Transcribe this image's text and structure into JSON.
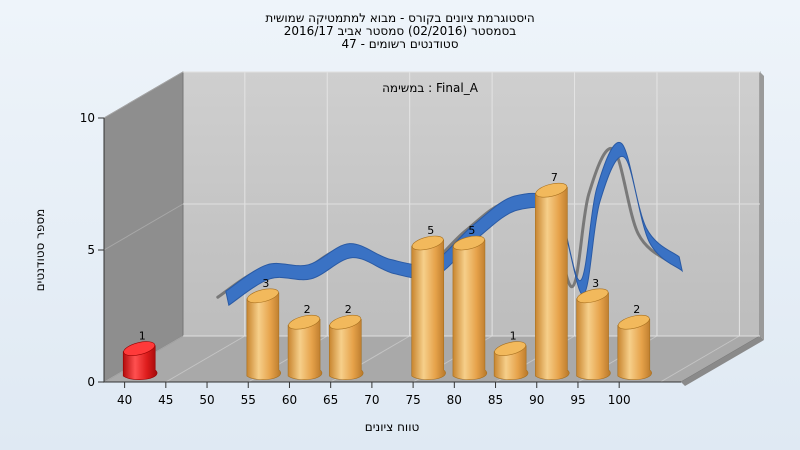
{
  "chart_data": {
    "type": "bar",
    "title_lines": [
      "היסטוגרמת ציונים בקורס - מבוא למתמטיקה שמושית",
      "בסמסטר  (02/2016)  סמסטר אביב 2016/17",
      "סטודנטים רשומים - 47"
    ],
    "annotation": "במשימה : Final_A",
    "xlabel": "טווח ציונים",
    "ylabel": "מספר סטודנטים",
    "x_ticks": [
      "40",
      "45",
      "50",
      "55",
      "60",
      "65",
      "70",
      "75",
      "80",
      "85",
      "90",
      "95",
      "100"
    ],
    "y_ticks": [
      "0",
      "5",
      "10"
    ],
    "ylim": [
      0,
      10
    ],
    "series": [
      {
        "values": [
          {
            "x": 40,
            "y": 1,
            "highlight": true
          },
          {
            "x": 55,
            "y": 3
          },
          {
            "x": 60,
            "y": 2
          },
          {
            "x": 65,
            "y": 2
          },
          {
            "x": 75,
            "y": 5
          },
          {
            "x": 80,
            "y": 5
          },
          {
            "x": 85,
            "y": 1
          },
          {
            "x": 90,
            "y": 7
          },
          {
            "x": 95,
            "y": 3
          },
          {
            "x": 100,
            "y": 2
          }
        ]
      }
    ],
    "curve": {
      "points": [
        [
          45,
          2.0
        ],
        [
          50,
          3.0
        ],
        [
          55,
          3.0
        ],
        [
          60,
          3.8
        ],
        [
          65,
          3.2
        ],
        [
          70,
          3.1
        ],
        [
          75,
          4.5
        ],
        [
          80,
          5.6
        ],
        [
          85,
          5.3
        ],
        [
          88,
          2.4
        ],
        [
          90,
          5.9
        ],
        [
          93,
          7.6
        ],
        [
          96,
          4.4
        ],
        [
          100,
          3.3
        ]
      ]
    },
    "colors": {
      "bar": "#e8a848",
      "bar_highlight": "#dd1c1c",
      "curve": "#3a72c4",
      "curve_shadow": "#707070",
      "back_wall": "#c6c6c6",
      "side_wall": "#8e8e8e",
      "floor": "#a9a9a9"
    },
    "grid": true
  }
}
